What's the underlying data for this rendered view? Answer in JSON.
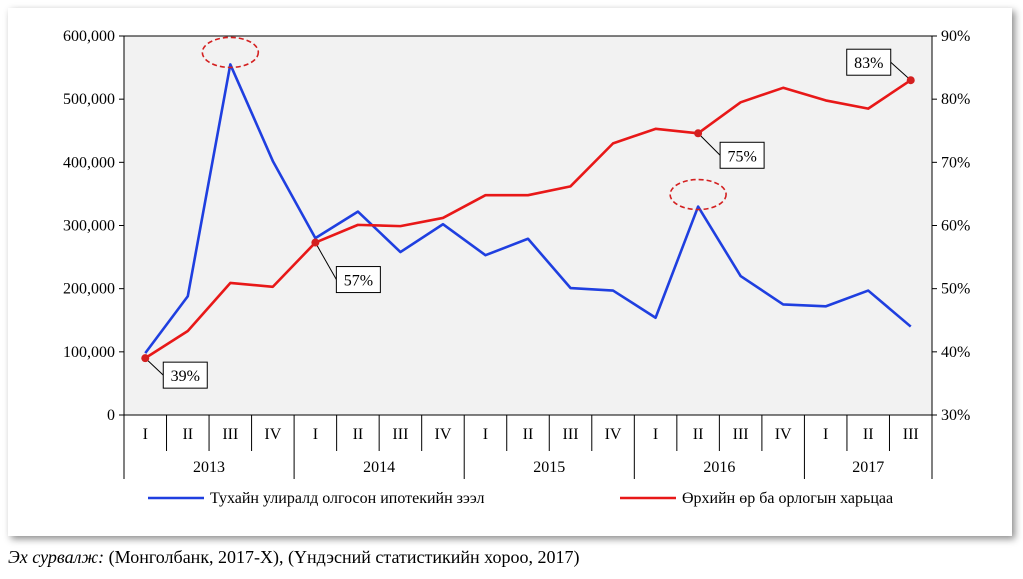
{
  "chart_data": {
    "type": "line",
    "x": [
      "I",
      "II",
      "III",
      "IV",
      "I",
      "II",
      "III",
      "IV",
      "I",
      "II",
      "III",
      "IV",
      "I",
      "II",
      "III",
      "IV",
      "I",
      "II",
      "III"
    ],
    "year_groups": [
      {
        "label": "2013",
        "quarters": 4
      },
      {
        "label": "2014",
        "quarters": 4
      },
      {
        "label": "2015",
        "quarters": 4
      },
      {
        "label": "2016",
        "quarters": 4
      },
      {
        "label": "2017",
        "quarters": 3
      }
    ],
    "series": [
      {
        "name": "Тухайн улиралд олгосон ипотекийн зээл",
        "axis": "left",
        "color": "#1f3fe0",
        "values": [
          98000,
          188000,
          555000,
          402000,
          280000,
          322000,
          258000,
          302000,
          253000,
          279000,
          201000,
          197000,
          154000,
          330000,
          220000,
          175000,
          172000,
          197000,
          140000
        ]
      },
      {
        "name": "Өрхийн өр ба орлогын харьцаа",
        "axis": "right",
        "color": "#e81818",
        "values": [
          39,
          43.3,
          50.9,
          50.3,
          57.3,
          60.1,
          59.9,
          61.2,
          64.8,
          64.8,
          66.2,
          73,
          75.3,
          74.6,
          79.5,
          81.8,
          79.8,
          78.5,
          83
        ]
      }
    ],
    "y_left": {
      "min": 0,
      "max": 600000,
      "step": 100000,
      "ticks": [
        "0",
        "100,000",
        "200,000",
        "300,000",
        "400,000",
        "500,000",
        "600,000"
      ]
    },
    "y_right": {
      "min": 30,
      "max": 90,
      "step": 10,
      "ticks": [
        "30%",
        "40%",
        "50%",
        "60%",
        "70%",
        "80%",
        "90%"
      ]
    },
    "callouts": [
      {
        "text": "39%",
        "series": 1,
        "index": 0
      },
      {
        "text": "57%",
        "series": 1,
        "index": 4
      },
      {
        "text": "75%",
        "series": 1,
        "index": 13
      },
      {
        "text": "83%",
        "series": 1,
        "index": 18
      }
    ],
    "highlights": [
      {
        "series": 0,
        "index": 2
      },
      {
        "series": 0,
        "index": 13
      }
    ],
    "grid": false,
    "legend_position": "bottom",
    "title": "",
    "xlabel": "",
    "ylabel": ""
  },
  "source": {
    "label": "Эх сурвалж:",
    "text": " (Монголбанк, 2017-X), (Үндэсний статистикийн хороо, 2017)"
  }
}
